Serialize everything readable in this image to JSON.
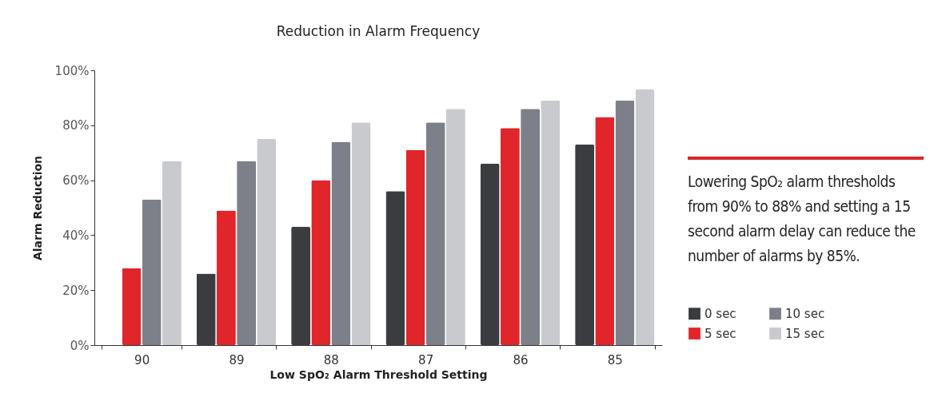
{
  "chart_data": {
    "type": "bar",
    "title": "Reduction in Alarm Frequency",
    "xlabel": "Low SpO₂ Alarm Threshold Setting",
    "ylabel": "Alarm Reduction",
    "categories": [
      "90",
      "89",
      "88",
      "87",
      "86",
      "85"
    ],
    "series": [
      {
        "name": "0 sec",
        "color": "#3a3c40",
        "values": [
          null,
          26,
          43,
          56,
          66,
          73
        ]
      },
      {
        "name": "5 sec",
        "color": "#e0262b",
        "values": [
          28,
          49,
          60,
          71,
          79,
          83
        ]
      },
      {
        "name": "10 sec",
        "color": "#7d8088",
        "values": [
          53,
          67,
          74,
          81,
          86,
          89
        ]
      },
      {
        "name": "15 sec",
        "color": "#c8cacd",
        "values": [
          67,
          75,
          81,
          86,
          89,
          93
        ]
      }
    ],
    "ylim": [
      0,
      100
    ],
    "yticks": [
      {
        "value": 0,
        "label": "0%"
      },
      {
        "value": 20,
        "label": "20%"
      },
      {
        "value": 40,
        "label": "40%"
      },
      {
        "value": 60,
        "label": "60%"
      },
      {
        "value": 80,
        "label": "80%"
      },
      {
        "value": 100,
        "label": "100%"
      }
    ],
    "grid": false,
    "legend": "right",
    "annotations": [
      "Lowering SpO₂ alarm thresholds from 90% to 88% and setting a 15 second alarm delay can reduce the number of alarms by 85%."
    ]
  }
}
